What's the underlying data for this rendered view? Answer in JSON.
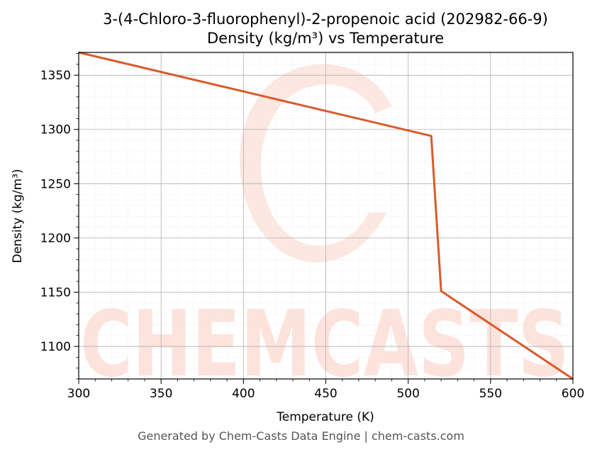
{
  "watermark": {
    "text": "CHEMCASTS",
    "color": "#fde3dc"
  },
  "footer": "Generated by Chem-Casts Data Engine | chem-casts.com",
  "chart_data": {
    "type": "line",
    "title": "3-(4-Chloro-3-fluorophenyl)-2-propenoic acid (202982-66-9)",
    "subtitle": "Density (kg/m³) vs Temperature",
    "xlabel": "Temperature (K)",
    "ylabel": "Density (kg/m³)",
    "xlim": [
      300,
      600
    ],
    "ylim": [
      1070,
      1371
    ],
    "xticks": [
      300,
      350,
      400,
      450,
      500,
      550,
      600
    ],
    "yticks": [
      1100,
      1150,
      1200,
      1250,
      1300,
      1350
    ],
    "grid": true,
    "series": [
      {
        "color": "#d95a2b",
        "x": [
          300,
          514,
          520,
          600
        ],
        "y": [
          1371,
          1294,
          1151,
          1070
        ]
      }
    ]
  }
}
